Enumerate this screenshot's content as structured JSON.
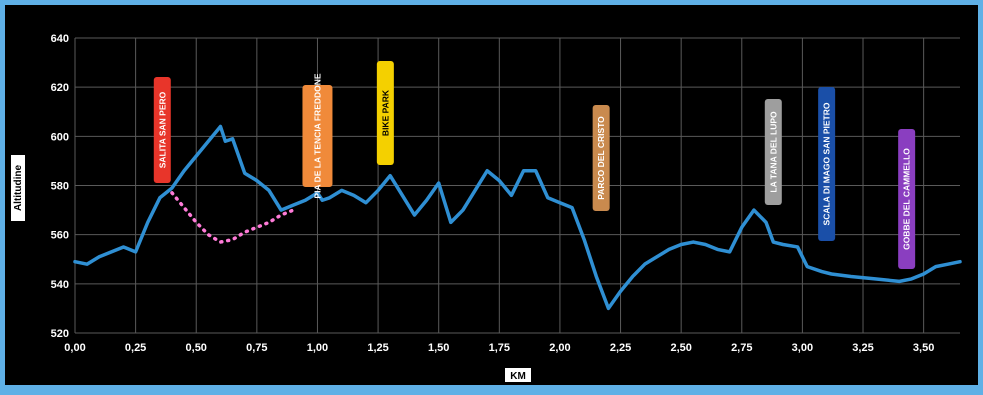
{
  "chart_data": {
    "type": "line",
    "xlabel": "KM",
    "ylabel": "Altitudine",
    "xlim": [
      0,
      3.65
    ],
    "ylim": [
      520,
      640
    ],
    "x_ticks": [
      "0,00",
      "0,25",
      "0,50",
      "0,75",
      "1,00",
      "1,25",
      "1,50",
      "1,75",
      "2,00",
      "2,25",
      "2,50",
      "2,75",
      "3,00",
      "3,25",
      "3,50"
    ],
    "y_ticks": [
      "520",
      "540",
      "560",
      "580",
      "600",
      "620",
      "640"
    ],
    "grid": true,
    "series": [
      {
        "style": "solid",
        "color": "#2f8fd3",
        "x": [
          0,
          0.05,
          0.1,
          0.15,
          0.2,
          0.25,
          0.3,
          0.35,
          0.4,
          0.45,
          0.5,
          0.55,
          0.6,
          0.62,
          0.65,
          0.7,
          0.75,
          0.8,
          0.85,
          0.9,
          0.95,
          1.0,
          1.02,
          1.05,
          1.1,
          1.15,
          1.2,
          1.25,
          1.3,
          1.35,
          1.4,
          1.45,
          1.5,
          1.55,
          1.6,
          1.65,
          1.7,
          1.75,
          1.8,
          1.85,
          1.9,
          1.95,
          2.0,
          2.05,
          2.1,
          2.15,
          2.2,
          2.25,
          2.3,
          2.35,
          2.4,
          2.45,
          2.5,
          2.55,
          2.6,
          2.65,
          2.7,
          2.75,
          2.8,
          2.85,
          2.88,
          2.92,
          2.98,
          3.02,
          3.08,
          3.12,
          3.2,
          3.3,
          3.4,
          3.45,
          3.5,
          3.55,
          3.6,
          3.65
        ],
        "values": [
          549,
          548,
          551,
          553,
          555,
          553,
          565,
          575,
          579,
          586,
          592,
          598,
          604,
          598,
          599,
          585,
          582,
          578,
          570,
          572,
          574,
          577,
          574,
          575,
          578,
          576,
          573,
          578,
          584,
          576,
          568,
          574,
          581,
          565,
          570,
          578,
          586,
          582,
          576,
          586,
          586,
          575,
          573,
          571,
          558,
          543,
          530,
          537,
          543,
          548,
          551,
          554,
          556,
          557,
          556,
          554,
          553,
          563,
          570,
          565,
          557,
          556,
          555,
          547,
          545,
          544,
          543,
          542,
          541,
          542,
          544,
          547,
          548,
          549
        ]
      },
      {
        "style": "dotted",
        "color": "#ff7bd8",
        "x": [
          0.4,
          0.45,
          0.5,
          0.55,
          0.6,
          0.65,
          0.7,
          0.75,
          0.8,
          0.85,
          0.9
        ],
        "values": [
          577,
          571,
          565,
          560,
          557,
          558,
          561,
          563,
          565,
          568,
          570
        ]
      }
    ],
    "annotations": [
      {
        "text": "SALITA SAN PERO",
        "x": 0.36,
        "bg": "#e8352a",
        "color": "#ffffff"
      },
      {
        "text": "PIA DE LA TENCIA FREDDONE",
        "x": 1.0,
        "bg": "#f08a3a",
        "color": "#ffffff"
      },
      {
        "text": "BIKE PARK",
        "x": 1.28,
        "bg": "#f4d000",
        "color": "#000000"
      },
      {
        "text": "PARCO DEL CRISTO",
        "x": 2.17,
        "bg": "#c98a4e",
        "color": "#ffffff"
      },
      {
        "text": "LA TANA DEL LUPO",
        "x": 2.88,
        "bg": "#9e9e9e",
        "color": "#ffffff"
      },
      {
        "text": "SCALA DI MAGO SAN PIETRO",
        "x": 3.1,
        "bg": "#1a4fa8",
        "color": "#ffffff"
      },
      {
        "text": "GOBBE DEL CAMMELLO",
        "x": 3.43,
        "bg": "#8a3ec0",
        "color": "#ffffff"
      }
    ]
  }
}
